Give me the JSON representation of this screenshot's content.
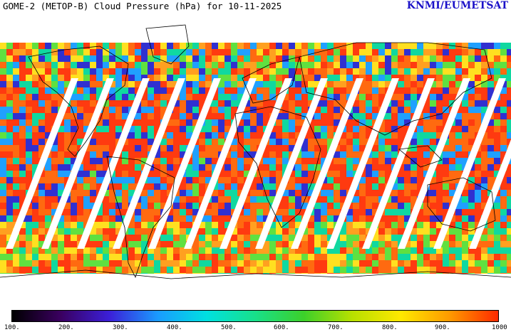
{
  "title": "GOME-2 (METOP-B) Cloud Pressure (hPa) for 10-11-2025",
  "credit": "KNMI/EUMETSAT",
  "credit_color": "#1a10c8",
  "colorbar": {
    "min": 100,
    "max": 1000,
    "stops": [
      "#000000",
      "#3a0060",
      "#3b1fd8",
      "#1a9bff",
      "#00e0e0",
      "#18e08a",
      "#3cd02a",
      "#b8e000",
      "#ffe800",
      "#ff9a00",
      "#ff2a00"
    ],
    "tick_labels": [
      "100.",
      "200.",
      "300.",
      "400.",
      "500.",
      "600.",
      "700.",
      "800.",
      "900.",
      "1000"
    ]
  },
  "map": {
    "background": "#ffffff",
    "field_colors": [
      "#ff3a10",
      "#ff6a10",
      "#ffa020",
      "#ffe020",
      "#60e040",
      "#10d8a0",
      "#20a0ff",
      "#3030d0"
    ]
  }
}
